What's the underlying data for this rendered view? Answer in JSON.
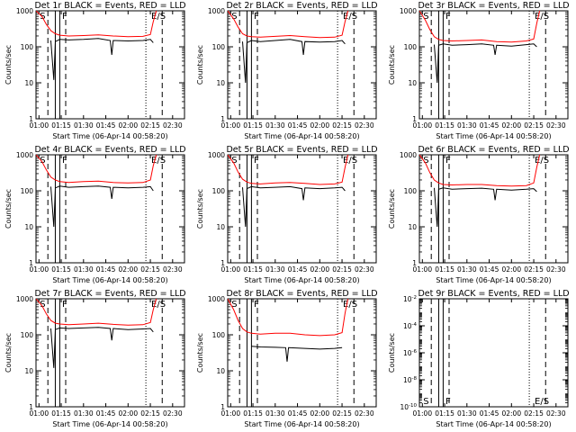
{
  "chart_data": [
    {
      "type": "line",
      "title": "Det 1r BLACK = Events, RED = LLD",
      "ylabel": "Counts/sec",
      "xlabel": "Start Time (06-Apr-14 00:58:20)",
      "xlim": [
        "00:58",
        "02:38"
      ],
      "ylim": [
        1,
        1000
      ],
      "yscale": "log",
      "xticks": [
        "01:00",
        "01:15",
        "01:30",
        "01:45",
        "02:00",
        "02:15",
        "02:30"
      ],
      "yticks": [
        "1",
        "10",
        "100",
        "1000"
      ],
      "markers": [
        {
          "label": "S",
          "time": "01:00"
        },
        {
          "label": "F",
          "time": "01:15"
        },
        {
          "label": "E/S",
          "time": "02:15"
        }
      ],
      "dashed_lines": [
        "01:06",
        "01:18",
        "02:23"
      ],
      "dotted_lines": [
        "02:12"
      ],
      "solid_lines": [
        "01:11",
        "01:14"
      ],
      "series": [
        {
          "color": "#ff0000",
          "x": [
            "00:58",
            "01:02",
            "01:05",
            "01:08",
            "01:11",
            "01:14",
            "01:20",
            "01:30",
            "01:40",
            "01:50",
            "02:00",
            "02:10",
            "02:15",
            "02:17",
            "02:19"
          ],
          "values": [
            1000,
            700,
            420,
            280,
            230,
            210,
            200,
            205,
            215,
            200,
            190,
            195,
            220,
            500,
            1000
          ]
        },
        {
          "color": "#000000",
          "x": [
            "01:08",
            "01:10",
            "01:11",
            "01:14",
            "01:20",
            "01:30",
            "01:40",
            "01:48",
            "01:49",
            "01:50",
            "02:00",
            "02:10",
            "02:15",
            "02:17"
          ],
          "values": [
            150,
            12,
            140,
            160,
            155,
            160,
            170,
            150,
            60,
            150,
            145,
            150,
            160,
            130
          ]
        }
      ]
    },
    {
      "type": "line",
      "title": "Det 2r BLACK = Events, RED = LLD",
      "ylabel": "Counts/sec",
      "xlabel": "Start Time (06-Apr-14 00:58:20)",
      "xlim": [
        "00:58",
        "02:38"
      ],
      "ylim": [
        1,
        1000
      ],
      "yscale": "log",
      "xticks": [
        "01:00",
        "01:15",
        "01:30",
        "01:45",
        "02:00",
        "02:15",
        "02:30"
      ],
      "yticks": [
        "1",
        "10",
        "100",
        "1000"
      ],
      "markers": [
        {
          "label": "S",
          "time": "01:00"
        },
        {
          "label": "F",
          "time": "01:15"
        },
        {
          "label": "E/S",
          "time": "02:15"
        }
      ],
      "dashed_lines": [
        "01:06",
        "01:18",
        "02:23"
      ],
      "dotted_lines": [
        "02:12"
      ],
      "solid_lines": [
        "01:11",
        "01:14"
      ],
      "series": [
        {
          "color": "#ff0000",
          "x": [
            "00:58",
            "01:02",
            "01:05",
            "01:08",
            "01:11",
            "01:14",
            "01:20",
            "01:30",
            "01:40",
            "01:50",
            "02:00",
            "02:10",
            "02:15",
            "02:17",
            "02:19"
          ],
          "values": [
            1000,
            600,
            350,
            230,
            200,
            190,
            185,
            195,
            205,
            190,
            180,
            185,
            210,
            500,
            1000
          ]
        },
        {
          "color": "#000000",
          "x": [
            "01:08",
            "01:10",
            "01:11",
            "01:14",
            "01:20",
            "01:30",
            "01:40",
            "01:48",
            "01:49",
            "01:50",
            "02:00",
            "02:10",
            "02:15",
            "02:17"
          ],
          "values": [
            140,
            10,
            130,
            150,
            140,
            150,
            160,
            140,
            60,
            140,
            135,
            140,
            150,
            120
          ]
        }
      ]
    },
    {
      "type": "line",
      "title": "Det 3r BLACK = Events, RED = LLD",
      "ylabel": "Counts/sec",
      "xlabel": "Start Time (06-Apr-14 00:58:20)",
      "xlim": [
        "00:58",
        "02:38"
      ],
      "ylim": [
        1,
        1000
      ],
      "yscale": "log",
      "xticks": [
        "01:00",
        "01:15",
        "01:30",
        "01:45",
        "02:00",
        "02:15",
        "02:30"
      ],
      "yticks": [
        "1",
        "10",
        "100",
        "1000"
      ],
      "markers": [
        {
          "label": "S",
          "time": "01:00"
        },
        {
          "label": "F",
          "time": "01:15"
        },
        {
          "label": "E/S",
          "time": "02:15"
        }
      ],
      "dashed_lines": [
        "01:06",
        "01:18",
        "02:23"
      ],
      "dotted_lines": [
        "02:12"
      ],
      "solid_lines": [
        "01:11",
        "01:14"
      ],
      "series": [
        {
          "color": "#ff0000",
          "x": [
            "00:58",
            "01:02",
            "01:05",
            "01:08",
            "01:11",
            "01:14",
            "01:20",
            "01:30",
            "01:40",
            "01:50",
            "02:00",
            "02:10",
            "02:15",
            "02:17",
            "02:19"
          ],
          "values": [
            1000,
            550,
            300,
            190,
            160,
            150,
            145,
            150,
            155,
            140,
            135,
            145,
            165,
            450,
            1000
          ]
        },
        {
          "color": "#000000",
          "x": [
            "01:08",
            "01:10",
            "01:11",
            "01:14",
            "01:20",
            "01:30",
            "01:40",
            "01:48",
            "01:49",
            "01:50",
            "02:00",
            "02:10",
            "02:15",
            "02:17"
          ],
          "values": [
            115,
            10,
            110,
            120,
            110,
            115,
            120,
            110,
            60,
            110,
            105,
            115,
            120,
            100
          ]
        }
      ]
    },
    {
      "type": "line",
      "title": "Det 4r BLACK = Events, RED = LLD",
      "ylabel": "Counts/sec",
      "xlabel": "Start Time (06-Apr-14 00:58:20)",
      "xlim": [
        "00:58",
        "02:38"
      ],
      "ylim": [
        1,
        1000
      ],
      "yscale": "log",
      "xticks": [
        "01:00",
        "01:15",
        "01:30",
        "01:45",
        "02:00",
        "02:15",
        "02:30"
      ],
      "yticks": [
        "1",
        "10",
        "100",
        "1000"
      ],
      "markers": [
        {
          "label": "S",
          "time": "01:00"
        },
        {
          "label": "F",
          "time": "01:15"
        },
        {
          "label": "E/S",
          "time": "02:15"
        }
      ],
      "dashed_lines": [
        "01:06",
        "01:18",
        "02:23"
      ],
      "dotted_lines": [
        "02:12"
      ],
      "solid_lines": [
        "01:11",
        "01:14"
      ],
      "series": [
        {
          "color": "#ff0000",
          "x": [
            "00:58",
            "01:02",
            "01:05",
            "01:08",
            "01:11",
            "01:14",
            "01:20",
            "01:30",
            "01:40",
            "01:50",
            "02:00",
            "02:10",
            "02:15",
            "02:17",
            "02:19"
          ],
          "values": [
            1000,
            650,
            380,
            240,
            200,
            180,
            170,
            180,
            185,
            170,
            165,
            170,
            200,
            500,
            1000
          ]
        },
        {
          "color": "#000000",
          "x": [
            "01:08",
            "01:10",
            "01:11",
            "01:14",
            "01:20",
            "01:30",
            "01:40",
            "01:48",
            "01:49",
            "01:50",
            "02:00",
            "02:10",
            "02:15",
            "02:17"
          ],
          "values": [
            130,
            10,
            120,
            135,
            125,
            130,
            135,
            125,
            60,
            125,
            120,
            125,
            130,
            100
          ]
        }
      ]
    },
    {
      "type": "line",
      "title": "Det 5r BLACK = Events, RED = LLD",
      "ylabel": "Counts/sec",
      "xlabel": "Start Time (06-Apr-14 00:58:20)",
      "xlim": [
        "00:58",
        "02:38"
      ],
      "ylim": [
        1,
        1000
      ],
      "yscale": "log",
      "xticks": [
        "01:00",
        "01:15",
        "01:30",
        "01:45",
        "02:00",
        "02:15",
        "02:30"
      ],
      "yticks": [
        "1",
        "10",
        "100",
        "1000"
      ],
      "markers": [
        {
          "label": "S",
          "time": "01:00"
        },
        {
          "label": "F",
          "time": "01:15"
        },
        {
          "label": "E/S",
          "time": "02:15"
        }
      ],
      "dashed_lines": [
        "01:06",
        "01:18",
        "02:23"
      ],
      "dotted_lines": [
        "02:12"
      ],
      "solid_lines": [
        "01:11",
        "01:14"
      ],
      "series": [
        {
          "color": "#ff0000",
          "x": [
            "00:58",
            "01:02",
            "01:05",
            "01:08",
            "01:11",
            "01:14",
            "01:20",
            "01:30",
            "01:40",
            "01:50",
            "02:00",
            "02:10",
            "02:15",
            "02:17",
            "02:19"
          ],
          "values": [
            1000,
            600,
            330,
            210,
            175,
            160,
            155,
            165,
            170,
            160,
            150,
            155,
            175,
            450,
            1000
          ]
        },
        {
          "color": "#000000",
          "x": [
            "01:08",
            "01:10",
            "01:11",
            "01:14",
            "01:20",
            "01:30",
            "01:40",
            "01:48",
            "01:49",
            "01:50",
            "02:00",
            "02:10",
            "02:15",
            "02:17"
          ],
          "values": [
            125,
            10,
            115,
            130,
            120,
            125,
            130,
            115,
            55,
            120,
            115,
            120,
            125,
            100
          ]
        }
      ]
    },
    {
      "type": "line",
      "title": "Det 6r BLACK = Events, RED = LLD",
      "ylabel": "Counts/sec",
      "xlabel": "Start Time (06-Apr-14 00:58:20)",
      "xlim": [
        "00:58",
        "02:38"
      ],
      "ylim": [
        1,
        1000
      ],
      "yscale": "log",
      "xticks": [
        "01:00",
        "01:15",
        "01:30",
        "01:45",
        "02:00",
        "02:15",
        "02:30"
      ],
      "yticks": [
        "1",
        "10",
        "100",
        "1000"
      ],
      "markers": [
        {
          "label": "S",
          "time": "01:00"
        },
        {
          "label": "F",
          "time": "01:15"
        },
        {
          "label": "E/S",
          "time": "02:15"
        }
      ],
      "dashed_lines": [
        "01:06",
        "01:18",
        "02:23"
      ],
      "dotted_lines": [
        "02:12"
      ],
      "solid_lines": [
        "01:11",
        "01:14"
      ],
      "series": [
        {
          "color": "#ff0000",
          "x": [
            "00:58",
            "01:02",
            "01:05",
            "01:08",
            "01:11",
            "01:14",
            "01:20",
            "01:30",
            "01:40",
            "01:50",
            "02:00",
            "02:10",
            "02:15",
            "02:17",
            "02:19"
          ],
          "values": [
            1000,
            600,
            320,
            200,
            165,
            150,
            145,
            150,
            150,
            140,
            135,
            140,
            165,
            450,
            1000
          ]
        },
        {
          "color": "#000000",
          "x": [
            "01:08",
            "01:10",
            "01:11",
            "01:14",
            "01:20",
            "01:30",
            "01:40",
            "01:48",
            "01:49",
            "01:50",
            "02:00",
            "02:10",
            "02:15",
            "02:17"
          ],
          "values": [
            120,
            10,
            110,
            120,
            110,
            115,
            118,
            110,
            55,
            110,
            105,
            110,
            115,
            95
          ]
        }
      ]
    },
    {
      "type": "line",
      "title": "Det 7r BLACK = Events, RED = LLD",
      "ylabel": "Counts/sec",
      "xlabel": "Start Time (06-Apr-14 00:58:20)",
      "xlim": [
        "00:58",
        "02:38"
      ],
      "ylim": [
        1,
        1000
      ],
      "yscale": "log",
      "xticks": [
        "01:00",
        "01:15",
        "01:30",
        "01:45",
        "02:00",
        "02:15",
        "02:30"
      ],
      "yticks": [
        "1",
        "10",
        "100",
        "1000"
      ],
      "markers": [
        {
          "label": "S",
          "time": "01:00"
        },
        {
          "label": "F",
          "time": "01:15"
        },
        {
          "label": "E/S",
          "time": "02:15"
        }
      ],
      "dashed_lines": [
        "01:06",
        "01:18",
        "02:23"
      ],
      "dotted_lines": [
        "02:12"
      ],
      "solid_lines": [
        "01:11",
        "01:14"
      ],
      "series": [
        {
          "color": "#ff0000",
          "x": [
            "00:58",
            "01:02",
            "01:05",
            "01:08",
            "01:11",
            "01:14",
            "01:20",
            "01:30",
            "01:40",
            "01:50",
            "02:00",
            "02:10",
            "02:15",
            "02:17",
            "02:19"
          ],
          "values": [
            1000,
            650,
            380,
            250,
            210,
            200,
            190,
            200,
            210,
            195,
            185,
            190,
            220,
            500,
            1000
          ]
        },
        {
          "color": "#000000",
          "x": [
            "01:08",
            "01:10",
            "01:11",
            "01:14",
            "01:20",
            "01:30",
            "01:40",
            "01:48",
            "01:49",
            "01:50",
            "02:00",
            "02:10",
            "02:15",
            "02:17"
          ],
          "values": [
            150,
            12,
            140,
            155,
            150,
            155,
            160,
            150,
            70,
            150,
            140,
            145,
            150,
            120
          ]
        }
      ]
    },
    {
      "type": "line",
      "title": "Det 8r BLACK = Events, RED = LLD",
      "ylabel": "Counts/sec",
      "xlabel": "Start Time (06-Apr-14 00:58:20)",
      "xlim": [
        "00:58",
        "02:38"
      ],
      "ylim": [
        1,
        1000
      ],
      "yscale": "log",
      "xticks": [
        "01:00",
        "01:15",
        "01:30",
        "01:45",
        "02:00",
        "02:15",
        "02:30"
      ],
      "yticks": [
        "1",
        "10",
        "100",
        "1000"
      ],
      "markers": [
        {
          "label": "S",
          "time": "01:00"
        },
        {
          "label": "F",
          "time": "01:15"
        },
        {
          "label": "E/S",
          "time": "02:15"
        }
      ],
      "dashed_lines": [
        "01:06",
        "01:18",
        "02:23"
      ],
      "dotted_lines": [
        "02:12"
      ],
      "solid_lines": [
        "01:11",
        "01:14"
      ],
      "series": [
        {
          "color": "#ff0000",
          "x": [
            "00:58",
            "01:02",
            "01:05",
            "01:08",
            "01:11",
            "01:14",
            "01:20",
            "01:30",
            "01:40",
            "01:50",
            "02:00",
            "02:10",
            "02:15",
            "02:17",
            "02:19"
          ],
          "values": [
            1000,
            500,
            250,
            150,
            120,
            110,
            105,
            110,
            110,
            100,
            95,
            100,
            115,
            400,
            1000
          ]
        },
        {
          "color": "#000000",
          "x": [
            "01:14",
            "01:20",
            "01:30",
            "01:37",
            "01:38",
            "01:39",
            "01:50",
            "02:00",
            "02:10",
            "02:15"
          ],
          "values": [
            48,
            46,
            45,
            44,
            18,
            44,
            42,
            40,
            42,
            44
          ]
        }
      ]
    },
    {
      "type": "line",
      "title": "Det 9r BLACK = Events, RED = LLD",
      "ylabel": "Counts/sec",
      "xlabel": "Start Time (06-Apr-14 00:58:20)",
      "xlim": [
        "00:58",
        "02:38"
      ],
      "ylim": [
        1e-10,
        0.01
      ],
      "yscale": "log",
      "xticks": [
        "01:00",
        "01:15",
        "01:30",
        "01:45",
        "02:00",
        "02:15",
        "02:30"
      ],
      "yticks": [
        "10^-10",
        "10^-8",
        "10^-6",
        "10^-4",
        "10^-2"
      ],
      "markers": [
        {
          "label": "S",
          "time": "01:00"
        },
        {
          "label": "F",
          "time": "01:15"
        },
        {
          "label": "E/S",
          "time": "02:15"
        }
      ],
      "dashed_lines": [
        "01:06",
        "01:18",
        "02:23"
      ],
      "dotted_lines": [
        "02:12"
      ],
      "solid_lines": [
        "01:11",
        "01:14"
      ],
      "series": []
    }
  ]
}
